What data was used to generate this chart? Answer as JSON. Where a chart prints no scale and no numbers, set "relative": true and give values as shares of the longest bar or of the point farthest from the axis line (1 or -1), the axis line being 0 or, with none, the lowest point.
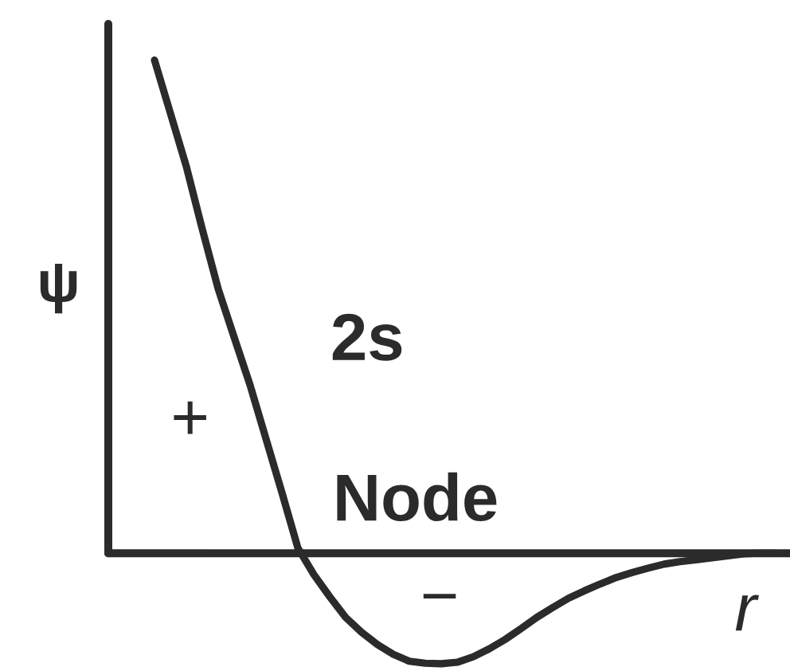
{
  "chart_data": {
    "type": "line",
    "relative": true,
    "line_style": "solid",
    "xlabel": "r",
    "ylabel": "ψ",
    "categories": [
      null,
      null,
      null,
      null,
      null,
      null,
      null,
      null,
      null,
      null,
      null,
      null,
      null,
      null,
      null,
      null,
      null,
      null,
      null,
      null,
      null,
      null,
      null,
      null,
      null,
      null,
      null,
      null,
      null,
      null,
      null,
      null,
      null,
      null,
      null,
      null,
      null,
      null,
      null,
      null
    ],
    "series": [
      {
        "name": "2s",
        "color": "#2b2b2b",
        "values": [
          1,
          0.892,
          0.784,
          0.657,
          0.536,
          0.438,
          0.341,
          0.232,
          0.123,
          0.011,
          -0.043,
          -0.088,
          -0.13,
          -0.16,
          -0.185,
          -0.205,
          -0.219,
          -0.223,
          -0.224,
          -0.221,
          -0.21,
          -0.194,
          -0.175,
          -0.153,
          -0.13,
          -0.11,
          -0.091,
          -0.076,
          -0.062,
          -0.049,
          -0.039,
          -0.03,
          -0.022,
          -0.017,
          -0.013,
          -0.009,
          -0.005,
          -0.001,
          0,
          0
        ]
      }
    ],
    "annotations": [
      "+",
      "Node",
      "−"
    ]
  }
}
